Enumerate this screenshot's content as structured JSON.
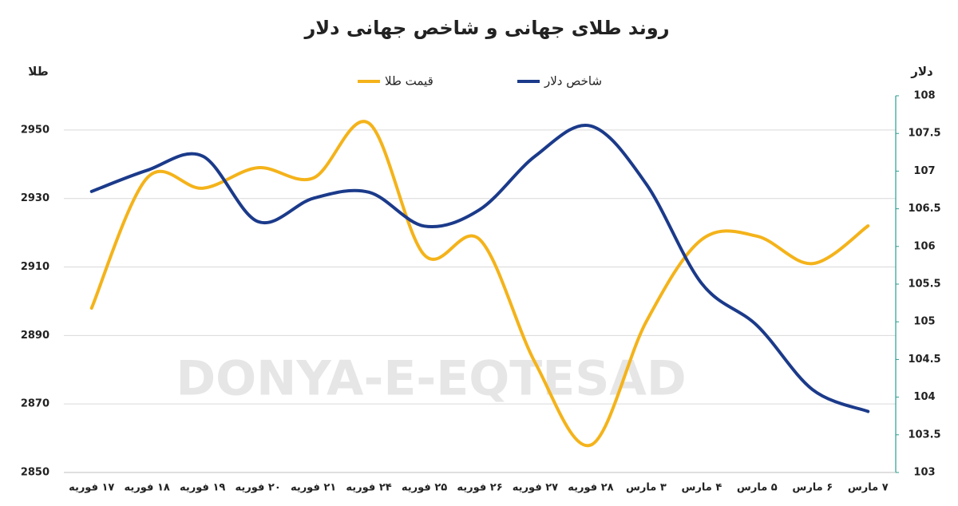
{
  "chart_data": {
    "type": "line",
    "title": "روند طلای جهانی و شاخص جهانی دلار",
    "watermark": "DONYA-E-EQTESAD",
    "y_label": "طلا",
    "y2_label": "دلار",
    "categories": [
      "۱۷ فوریه",
      "۱۸ فوریه",
      "۱۹ فوریه",
      "۲۰ فوریه",
      "۲۱ فوریه",
      "۲۴ فوریه",
      "۲۵ فوریه",
      "۲۶ فوریه",
      "۲۷ فوریه",
      "۲۸ فوریه",
      "۳ مارس",
      "۴ مارس",
      "۵ مارس",
      "۶ مارس",
      "۷ مارس"
    ],
    "series": [
      {
        "name": "قیمت طلا",
        "color": "#f4b31a",
        "axis": "y",
        "values": [
          2898,
          2936,
          2933,
          2939,
          2936,
          2952,
          2913.5,
          2918,
          2882,
          2858,
          2894,
          2918,
          2919,
          2911,
          2922
        ]
      },
      {
        "name": "شاخص دلار",
        "color": "#1b3a8a",
        "axis": "y2",
        "values": [
          106.73,
          107.01,
          107.2,
          106.33,
          106.64,
          106.72,
          106.27,
          106.49,
          107.2,
          107.6,
          106.83,
          105.51,
          104.95,
          104.1,
          103.81
        ]
      }
    ],
    "ylim": [
      2850,
      2960
    ],
    "yticks": [
      2850,
      2870,
      2890,
      2910,
      2930,
      2950
    ],
    "y2lim": [
      103,
      108
    ],
    "y2ticks": [
      103,
      103.5,
      104,
      104.5,
      105,
      105.5,
      106,
      106.5,
      107,
      107.5,
      108
    ],
    "grid": true
  }
}
